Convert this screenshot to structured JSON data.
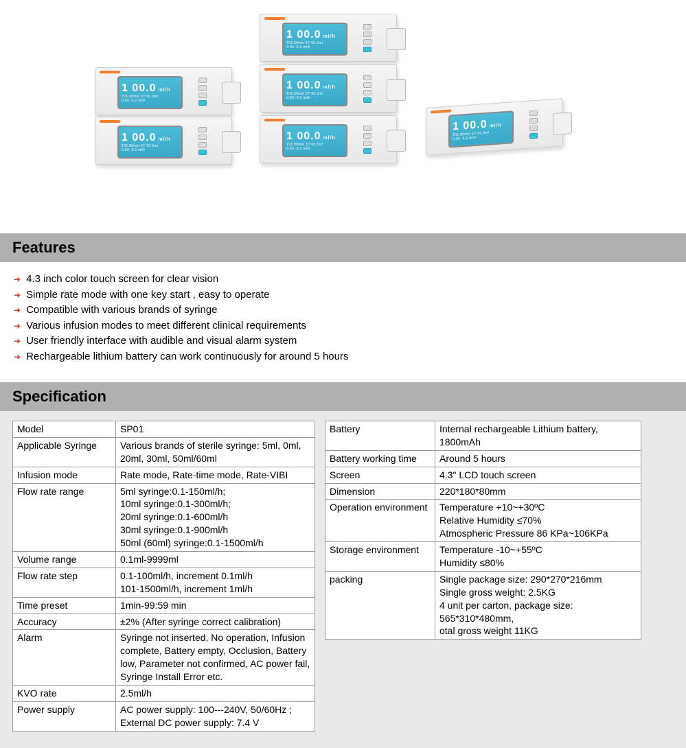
{
  "device_screen": {
    "big": "1 00.0",
    "unit": "ml/h",
    "line2": "T01:00min ΣT 00.0ml",
    "line3": "0:00- 0.2 ml/h"
  },
  "features": {
    "heading": "Features",
    "items": [
      "4.3 inch color touch screen for clear vision",
      "Simple rate mode with one key start , easy to operate",
      "Compatible with various brands of syringe",
      "Various infusion modes to meet different clinical requirements",
      "User friendly interface with audible and visual alarm system",
      "Rechargeable lithium battery can work continuously for around 5 hours"
    ]
  },
  "specification": {
    "heading": "Specification",
    "left_rows": [
      {
        "label": "Model",
        "value": "SP01"
      },
      {
        "label": "Applicable Syringe",
        "value": "Various brands of sterile syringe: 5ml, 0ml, 20ml, 30ml, 50ml/60ml"
      },
      {
        "label": "Infusion mode",
        "value": "Rate mode, Rate-time mode, Rate-VIBI"
      },
      {
        "label": "Flow rate range",
        "value": "5ml syringe:0.1-150ml/h;\n10ml syringe:0.1-300ml/h;\n20ml syringe:0.1-600ml/h\n30ml syringe:0.1-900ml/h\n50ml (60ml) syringe:0.1-1500ml/h"
      },
      {
        "label": "Volume range",
        "value": "0.1ml-9999ml"
      },
      {
        "label": "Flow rate step",
        "value": "0.1-100ml/h, increment 0.1ml/h\n101-1500ml/h, increment 1ml/h"
      },
      {
        "label": "Time preset",
        "value": "1min-99:59 min"
      },
      {
        "label": "Accuracy",
        "value": "±2% (After syringe correct calibration)"
      },
      {
        "label": "Alarm",
        "value": " Syringe not inserted, No operation, Infusion complete, Battery empty, Occlusion, Battery low, Parameter not confirmed, AC power fail, Syringe Install Error etc."
      },
      {
        "label": "KVO rate",
        "value": "2.5ml/h"
      },
      {
        "label": "Power supply",
        "value": "AC power supply: 100---240V, 50/60Hz ;\nExternal DC power supply: 7.4 V"
      }
    ],
    "right_rows": [
      {
        "label": "Battery",
        "value": "Internal rechargeable Lithium battery, 1800mAh"
      },
      {
        "label": "Battery working time",
        "value": "Around 5 hours"
      },
      {
        "label": "Screen",
        "value": "4.3\" LCD touch screen"
      },
      {
        "label": "Dimension",
        "value": "220*180*80mm"
      },
      {
        "label": "Operation environment",
        "value": " Temperature +10~+30ºC\n Relative Humidity ≤70%\n Atmospheric Pressure 86 KPa~106KPa"
      },
      {
        "label": "Storage environment",
        "value": " Temperature -10~+55ºC\n Humidity   ≤80%"
      },
      {
        "label": "packing",
        "value": "Single package size: 290*270*216mm\nSingle gross weight: 2.5KG\n4 unit per carton, package size: 565*310*480mm,\notal gross weight 11KG"
      }
    ]
  },
  "colors": {
    "header_bg": "#b0b0b0",
    "panel_bg": "#e9e9e9",
    "screen_bg": "#4abcd8",
    "arrow": "#d83a2a"
  }
}
